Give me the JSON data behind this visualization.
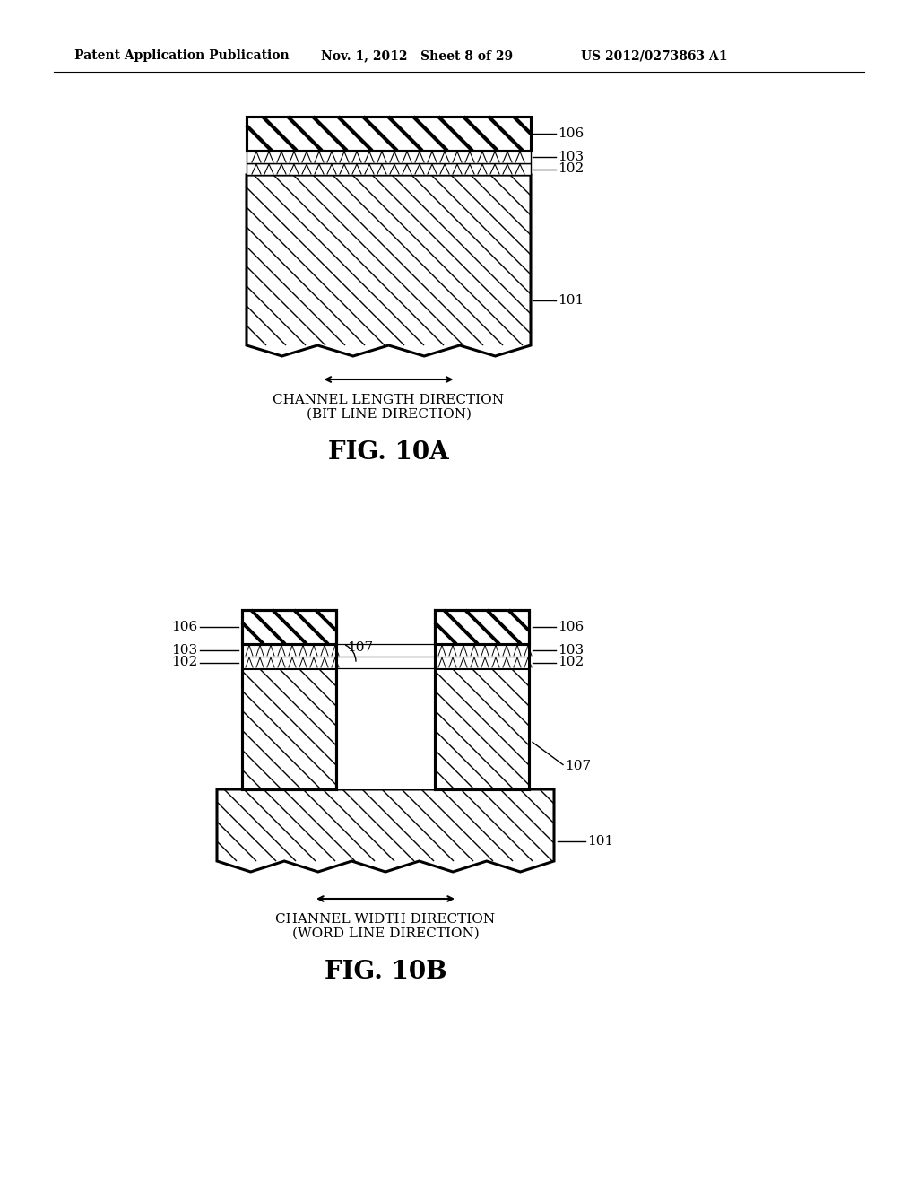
{
  "bg_color": "#ffffff",
  "header_left": "Patent Application Publication",
  "header_mid": "Nov. 1, 2012   Sheet 8 of 29",
  "header_right": "US 2012/0273863 A1",
  "fig10a_label": "FIG. 10A",
  "fig10b_label": "FIG. 10B",
  "line_color": "#000000"
}
